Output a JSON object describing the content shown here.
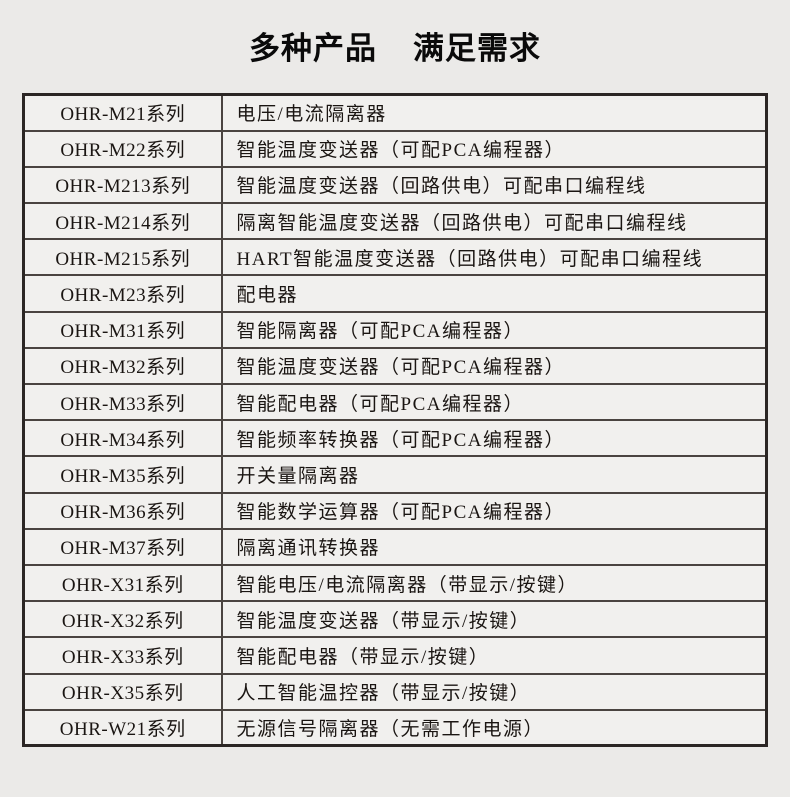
{
  "page": {
    "title": {
      "part1": "多种产品",
      "part2": "满足需求"
    }
  },
  "colors": {
    "page_background": "#ebeae8",
    "cell_background": "#f1f0ee",
    "outer_border": "#2b2624",
    "inner_border": "#4a4440",
    "text": "#1a1512",
    "title_text": "#0a0a0a"
  },
  "product_table": {
    "columns": [
      "series",
      "description"
    ],
    "rows": [
      {
        "series": "OHR-M21系列",
        "description": "电压/电流隔离器"
      },
      {
        "series": "OHR-M22系列",
        "description": "智能温度变送器（可配PCA编程器）"
      },
      {
        "series": "OHR-M213系列",
        "description": "智能温度变送器（回路供电）可配串口编程线"
      },
      {
        "series": "OHR-M214系列",
        "description": "隔离智能温度变送器（回路供电）可配串口编程线"
      },
      {
        "series": "OHR-M215系列",
        "description": "HART智能温度变送器（回路供电）可配串口编程线"
      },
      {
        "series": "OHR-M23系列",
        "description": "配电器"
      },
      {
        "series": "OHR-M31系列",
        "description": "智能隔离器（可配PCA编程器）"
      },
      {
        "series": "OHR-M32系列",
        "description": "智能温度变送器（可配PCA编程器）"
      },
      {
        "series": "OHR-M33系列",
        "description": "智能配电器（可配PCA编程器）"
      },
      {
        "series": "OHR-M34系列",
        "description": "智能频率转换器（可配PCA编程器）"
      },
      {
        "series": "OHR-M35系列",
        "description": "开关量隔离器"
      },
      {
        "series": "OHR-M36系列",
        "description": "智能数学运算器（可配PCA编程器）"
      },
      {
        "series": "OHR-M37系列",
        "description": "隔离通讯转换器"
      },
      {
        "series": "OHR-X31系列",
        "description": "智能电压/电流隔离器（带显示/按键）"
      },
      {
        "series": "OHR-X32系列",
        "description": "智能温度变送器（带显示/按键）"
      },
      {
        "series": "OHR-X33系列",
        "description": "智能配电器（带显示/按键）"
      },
      {
        "series": "OHR-X35系列",
        "description": "人工智能温控器（带显示/按键）"
      },
      {
        "series": "OHR-W21系列",
        "description": "无源信号隔离器（无需工作电源）"
      }
    ]
  }
}
